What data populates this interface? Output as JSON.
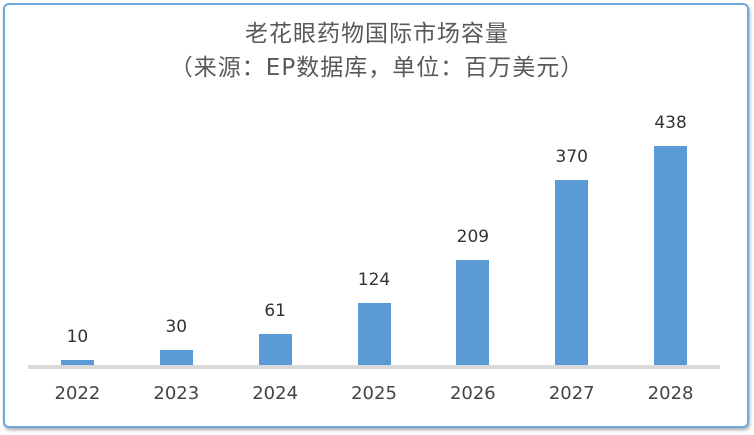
{
  "chart_data": {
    "type": "bar",
    "title": "老花眼药物国际市场容量",
    "subtitle": "（来源：EP数据库，单位：百万美元）",
    "categories": [
      "2022",
      "2023",
      "2024",
      "2025",
      "2026",
      "2027",
      "2028"
    ],
    "values": [
      10,
      30,
      61,
      124,
      209,
      370,
      438
    ],
    "xlabel": "",
    "ylabel": "",
    "ylim": [
      0,
      480
    ],
    "grid": false,
    "legend": false,
    "data_labels": true,
    "bar_color": "#5b9bd5",
    "axis_line_color": "#d9d9d9",
    "frame_border_color": "#72a7db",
    "title_color": "#595959",
    "label_color": "#333333",
    "tick_label_color": "#444444"
  }
}
